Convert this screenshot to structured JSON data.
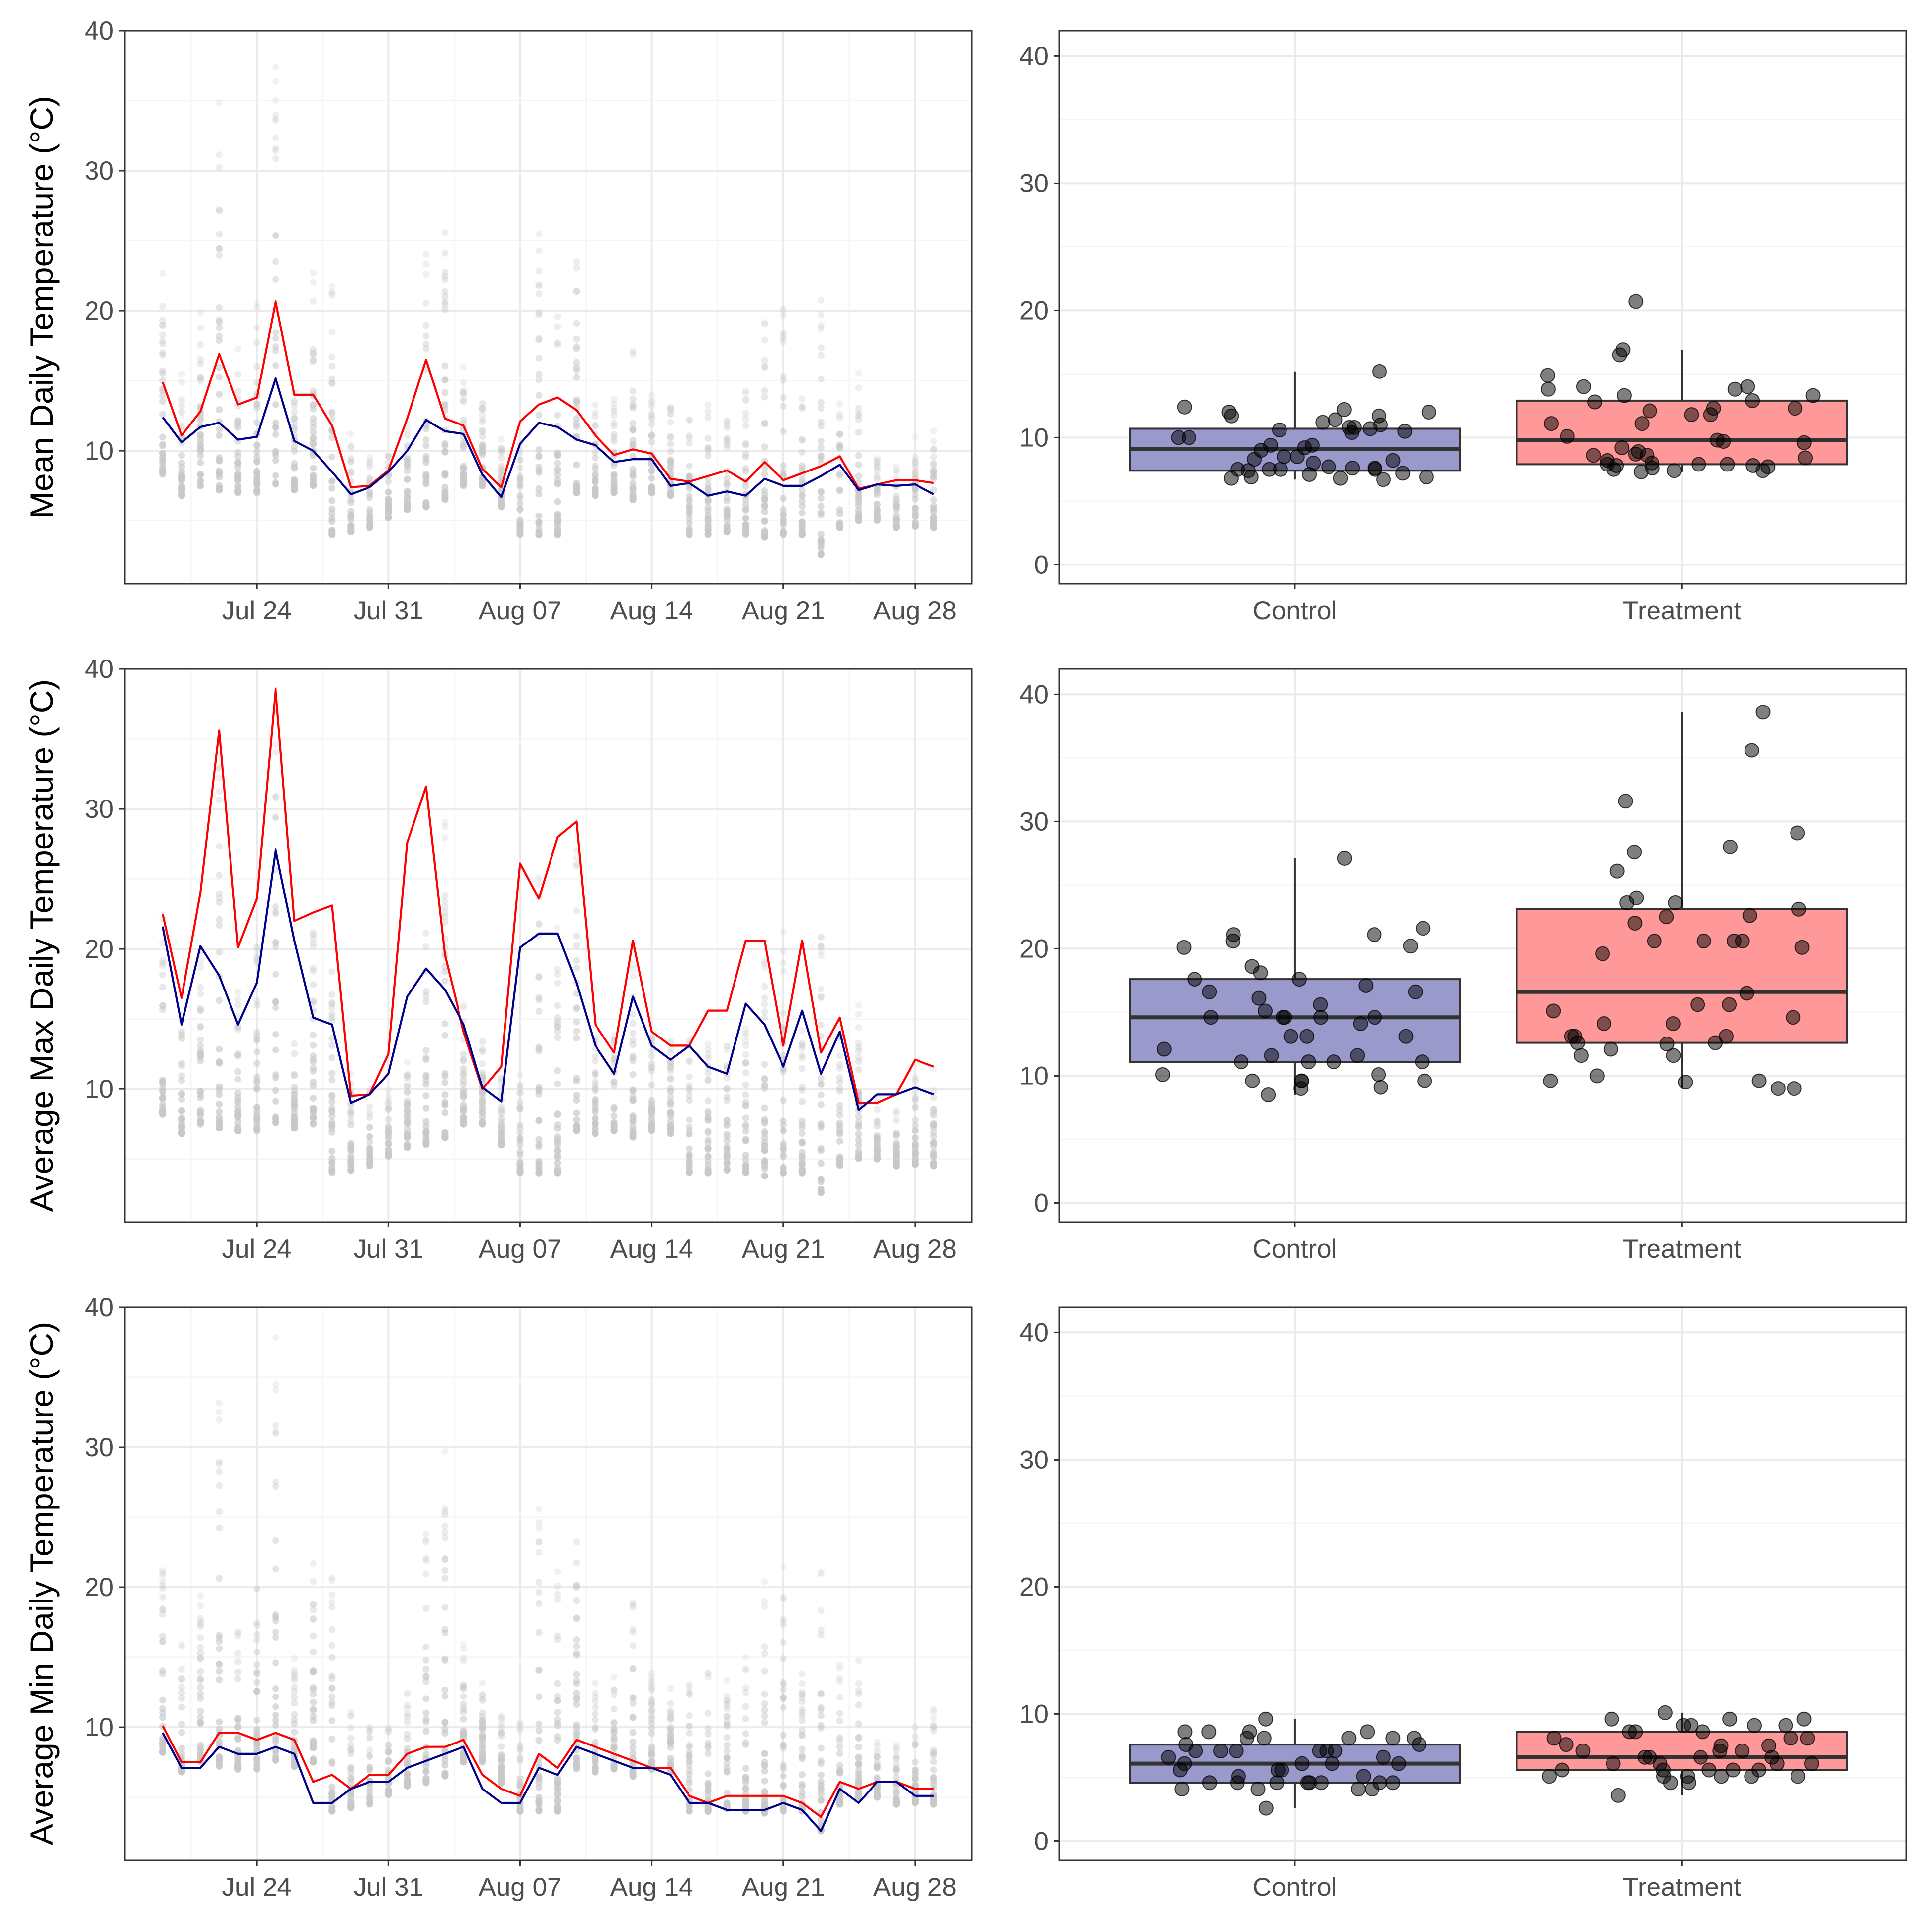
{
  "colors": {
    "treatment": "#ff0000",
    "control": "#00008b",
    "control_box_fill": "#9999cc",
    "treatment_box_fill": "#ff9999",
    "sensor_points": "#c8c8c8",
    "jitter_points": "#000000",
    "grid_major": "#ebebeb",
    "grid_minor": "#f5f5f5",
    "panel_border": "#333333"
  },
  "chart_data": [
    {
      "type": "line",
      "row": 0,
      "ylabel": "Mean Daily Temperature (°C)",
      "xlabel": "",
      "x_axis": "date",
      "x": [
        "Jul 19",
        "Jul 20",
        "Jul 21",
        "Jul 22",
        "Jul 23",
        "Jul 24",
        "Jul 25",
        "Jul 26",
        "Jul 27",
        "Jul 28",
        "Jul 29",
        "Jul 30",
        "Jul 31",
        "Aug 01",
        "Aug 02",
        "Aug 03",
        "Aug 04",
        "Aug 05",
        "Aug 06",
        "Aug 07",
        "Aug 08",
        "Aug 09",
        "Aug 10",
        "Aug 11",
        "Aug 12",
        "Aug 13",
        "Aug 14",
        "Aug 15",
        "Aug 16",
        "Aug 17",
        "Aug 18",
        "Aug 19",
        "Aug 20",
        "Aug 21",
        "Aug 22",
        "Aug 23",
        "Aug 24",
        "Aug 25",
        "Aug 26",
        "Aug 27",
        "Aug 28",
        "Aug 29"
      ],
      "x_ticks": [
        "Jul 24",
        "Jul 31",
        "Aug 07",
        "Aug 14",
        "Aug 21",
        "Aug 28"
      ],
      "ylim": [
        0.5,
        40
      ],
      "y_ticks": [
        10,
        20,
        30,
        40
      ],
      "grid": true,
      "background_points": "per-sensor daily values (grey), range per day",
      "point_range_low": [
        8.2,
        6.8,
        7.5,
        7.2,
        7.0,
        7.0,
        7.6,
        7.2,
        7.5,
        4.0,
        4.2,
        4.5,
        5.2,
        5.8,
        6.0,
        6.5,
        7.5,
        7.5,
        6.0,
        4.0,
        4.0,
        4.0,
        7.0,
        6.8,
        7.0,
        6.5,
        7.0,
        6.8,
        4.0,
        4.0,
        4.2,
        4.0,
        3.8,
        4.0,
        4.0,
        2.6,
        4.5,
        5.0,
        5.0,
        4.5,
        4.6,
        4.5
      ],
      "point_range_high": [
        22.8,
        16.0,
        20.0,
        35.0,
        18.0,
        21.0,
        38.0,
        15.0,
        23.0,
        22.0,
        11.5,
        10.0,
        10.0,
        12.5,
        25.0,
        30.0,
        16.0,
        13.5,
        11.0,
        11.0,
        27.0,
        22.0,
        28.0,
        14.0,
        14.0,
        19.0,
        14.0,
        13.5,
        14.0,
        14.5,
        13.5,
        15.0,
        20.5,
        21.5,
        15.0,
        22.0,
        14.5,
        16.0,
        9.5,
        9.0,
        11.0,
        11.5
      ],
      "series": [
        {
          "name": "",
          "color": "red",
          "values": [
            14.9,
            11.1,
            12.8,
            16.9,
            13.3,
            13.8,
            20.7,
            14.0,
            14.0,
            11.8,
            7.4,
            7.5,
            8.6,
            12.3,
            16.5,
            12.3,
            11.8,
            8.7,
            7.4,
            12.1,
            13.3,
            13.8,
            12.9,
            11.1,
            9.7,
            10.1,
            9.8,
            8.0,
            7.8,
            8.2,
            8.6,
            7.8,
            9.2,
            7.9,
            8.4,
            8.9,
            9.6,
            7.3,
            7.6,
            7.9,
            7.9,
            7.7
          ]
        },
        {
          "name": "",
          "color": "navy",
          "values": [
            12.4,
            10.6,
            11.7,
            12.0,
            10.8,
            11.0,
            15.2,
            10.7,
            10.0,
            8.5,
            6.9,
            7.4,
            8.5,
            10.0,
            12.2,
            11.4,
            11.2,
            8.3,
            6.7,
            10.5,
            12.0,
            11.7,
            10.8,
            10.4,
            9.2,
            9.4,
            9.4,
            7.5,
            7.7,
            6.8,
            7.1,
            6.8,
            8.0,
            7.5,
            7.5,
            8.2,
            9.0,
            7.2,
            7.6,
            7.5,
            7.6,
            6.9
          ]
        }
      ]
    },
    {
      "type": "box",
      "row": 0,
      "categories": [
        "Control",
        "Treatment"
      ],
      "ylim": [
        -1.5,
        42
      ],
      "y_ticks": [
        0,
        10,
        20,
        30,
        40
      ],
      "grid": true,
      "boxes": [
        {
          "category": "Control",
          "q1": 7.4,
          "median": 9.1,
          "q3": 10.7,
          "whisker_low": 6.7,
          "whisker_high": 15.2
        },
        {
          "category": "Treatment",
          "q1": 7.9,
          "median": 9.8,
          "q3": 12.9,
          "whisker_low": 7.3,
          "whisker_high": 16.9
        }
      ],
      "points": {
        "Control": [
          12.4,
          10.6,
          11.7,
          12.0,
          10.8,
          11.0,
          15.2,
          10.7,
          10.0,
          8.5,
          6.9,
          7.4,
          8.5,
          10.0,
          12.2,
          11.4,
          11.2,
          8.3,
          6.7,
          10.5,
          12.0,
          11.7,
          10.8,
          10.4,
          9.2,
          9.4,
          9.4,
          7.5,
          7.7,
          6.8,
          7.1,
          6.8,
          8.0,
          7.5,
          7.5,
          8.2,
          9.0,
          7.2,
          7.6,
          7.5,
          7.6,
          6.9
        ],
        "Treatment": [
          14.9,
          11.1,
          12.8,
          16.9,
          13.3,
          13.8,
          20.7,
          14.0,
          14.0,
          11.8,
          7.4,
          7.5,
          8.6,
          12.3,
          16.5,
          12.3,
          11.8,
          8.7,
          7.4,
          12.1,
          13.3,
          13.8,
          12.9,
          11.1,
          9.7,
          10.1,
          9.8,
          8.0,
          7.8,
          8.2,
          8.6,
          7.8,
          9.2,
          7.9,
          8.4,
          8.9,
          9.6,
          7.3,
          7.6,
          7.9,
          7.9,
          7.7
        ]
      }
    },
    {
      "type": "line",
      "row": 1,
      "ylabel": "Average Max Daily Temperature (°C)",
      "xlabel": "",
      "x_axis": "date",
      "x": [
        "Jul 19",
        "Jul 20",
        "Jul 21",
        "Jul 22",
        "Jul 23",
        "Jul 24",
        "Jul 25",
        "Jul 26",
        "Jul 27",
        "Jul 28",
        "Jul 29",
        "Jul 30",
        "Jul 31",
        "Aug 01",
        "Aug 02",
        "Aug 03",
        "Aug 04",
        "Aug 05",
        "Aug 06",
        "Aug 07",
        "Aug 08",
        "Aug 09",
        "Aug 10",
        "Aug 11",
        "Aug 12",
        "Aug 13",
        "Aug 14",
        "Aug 15",
        "Aug 16",
        "Aug 17",
        "Aug 18",
        "Aug 19",
        "Aug 20",
        "Aug 21",
        "Aug 22",
        "Aug 23",
        "Aug 24",
        "Aug 25",
        "Aug 26",
        "Aug 27",
        "Aug 28",
        "Aug 29"
      ],
      "x_ticks": [
        "Jul 24",
        "Jul 31",
        "Aug 07",
        "Aug 14",
        "Aug 21",
        "Aug 28"
      ],
      "ylim": [
        0.5,
        40
      ],
      "y_ticks": [
        10,
        20,
        30,
        40
      ],
      "grid": true,
      "background_points": "per-sensor daily values (grey), range per day",
      "point_range_low": [
        8.2,
        6.8,
        7.5,
        7.2,
        7.0,
        7.0,
        7.6,
        7.2,
        7.5,
        4.0,
        4.2,
        4.5,
        5.2,
        5.8,
        6.0,
        6.5,
        7.5,
        7.5,
        6.0,
        4.0,
        4.0,
        4.0,
        7.0,
        6.8,
        7.0,
        6.5,
        7.0,
        6.8,
        4.0,
        4.0,
        4.2,
        4.0,
        3.8,
        4.0,
        4.0,
        2.6,
        4.5,
        5.0,
        5.0,
        4.5,
        4.6,
        4.5
      ],
      "point_range_high": [
        22.8,
        16.0,
        20.0,
        35.0,
        18.0,
        21.0,
        38.0,
        15.0,
        23.0,
        22.0,
        11.5,
        10.0,
        10.0,
        12.5,
        25.0,
        30.0,
        16.0,
        13.5,
        11.0,
        11.0,
        27.0,
        22.0,
        28.0,
        14.0,
        14.0,
        19.0,
        14.0,
        13.5,
        14.0,
        14.5,
        13.5,
        15.0,
        20.5,
        21.5,
        15.0,
        22.0,
        14.5,
        16.0,
        9.5,
        9.0,
        11.0,
        11.5
      ],
      "series": [
        {
          "name": "",
          "color": "red",
          "values": [
            22.5,
            16.5,
            24.0,
            35.6,
            20.1,
            23.6,
            38.6,
            22.0,
            22.6,
            23.1,
            9.5,
            9.6,
            12.5,
            27.6,
            31.6,
            19.6,
            14.1,
            10.0,
            11.6,
            26.1,
            23.6,
            28.0,
            29.1,
            14.6,
            12.6,
            20.6,
            14.1,
            13.1,
            13.1,
            15.6,
            15.6,
            20.6,
            20.6,
            13.1,
            20.6,
            12.6,
            15.1,
            9.0,
            9.0,
            9.6,
            12.1,
            11.6
          ]
        },
        {
          "name": "",
          "color": "navy",
          "values": [
            21.6,
            14.6,
            20.2,
            18.1,
            14.6,
            17.6,
            27.1,
            20.6,
            15.1,
            14.6,
            9.0,
            9.6,
            11.1,
            16.6,
            18.6,
            17.1,
            14.6,
            10.1,
            9.1,
            20.1,
            21.1,
            21.1,
            17.6,
            13.1,
            11.1,
            16.6,
            13.1,
            12.1,
            13.1,
            11.6,
            11.1,
            16.1,
            14.6,
            11.6,
            15.6,
            11.1,
            14.1,
            8.5,
            9.6,
            9.6,
            10.1,
            9.6
          ]
        }
      ]
    },
    {
      "type": "box",
      "row": 1,
      "categories": [
        "Control",
        "Treatment"
      ],
      "ylim": [
        -1.5,
        42
      ],
      "y_ticks": [
        0,
        10,
        20,
        30,
        40
      ],
      "grid": true,
      "boxes": [
        {
          "category": "Control",
          "q1": 11.1,
          "median": 14.6,
          "q3": 17.6,
          "whisker_low": 8.5,
          "whisker_high": 27.1
        },
        {
          "category": "Treatment",
          "q1": 12.6,
          "median": 16.6,
          "q3": 23.1,
          "whisker_low": 9.0,
          "whisker_high": 38.6
        }
      ],
      "points": {
        "Control": [
          21.6,
          14.6,
          20.2,
          18.1,
          14.6,
          17.6,
          27.1,
          20.6,
          15.1,
          14.6,
          9.0,
          9.6,
          11.1,
          16.6,
          18.6,
          17.1,
          14.6,
          10.1,
          9.1,
          20.1,
          21.1,
          21.1,
          17.6,
          13.1,
          11.1,
          16.6,
          13.1,
          12.1,
          13.1,
          11.6,
          11.1,
          16.1,
          14.6,
          11.6,
          15.6,
          11.1,
          14.1,
          8.5,
          9.6,
          9.6,
          10.1,
          9.6
        ],
        "Treatment": [
          22.5,
          16.5,
          24.0,
          35.6,
          20.1,
          23.6,
          38.6,
          22.0,
          22.6,
          23.1,
          9.5,
          9.6,
          12.5,
          27.6,
          31.6,
          19.6,
          14.1,
          10.0,
          11.6,
          26.1,
          23.6,
          28.0,
          29.1,
          14.6,
          12.6,
          20.6,
          14.1,
          13.1,
          13.1,
          15.6,
          15.6,
          20.6,
          20.6,
          13.1,
          20.6,
          12.6,
          15.1,
          9.0,
          9.0,
          9.6,
          12.1,
          11.6
        ]
      }
    },
    {
      "type": "line",
      "row": 2,
      "ylabel": "Average Min Daily Temperature (°C)",
      "xlabel": "",
      "x_axis": "date",
      "x": [
        "Jul 19",
        "Jul 20",
        "Jul 21",
        "Jul 22",
        "Jul 23",
        "Jul 24",
        "Jul 25",
        "Jul 26",
        "Jul 27",
        "Jul 28",
        "Jul 29",
        "Jul 30",
        "Jul 31",
        "Aug 01",
        "Aug 02",
        "Aug 03",
        "Aug 04",
        "Aug 05",
        "Aug 06",
        "Aug 07",
        "Aug 08",
        "Aug 09",
        "Aug 10",
        "Aug 11",
        "Aug 12",
        "Aug 13",
        "Aug 14",
        "Aug 15",
        "Aug 16",
        "Aug 17",
        "Aug 18",
        "Aug 19",
        "Aug 20",
        "Aug 21",
        "Aug 22",
        "Aug 23",
        "Aug 24",
        "Aug 25",
        "Aug 26",
        "Aug 27",
        "Aug 28",
        "Aug 29"
      ],
      "x_ticks": [
        "Jul 24",
        "Jul 31",
        "Aug 07",
        "Aug 14",
        "Aug 21",
        "Aug 28"
      ],
      "ylim": [
        0.5,
        40
      ],
      "y_ticks": [
        10,
        20,
        30,
        40
      ],
      "grid": true,
      "background_points": "per-sensor daily values (grey), range per day",
      "point_range_low": [
        8.2,
        6.8,
        7.5,
        7.2,
        7.0,
        7.0,
        7.6,
        7.2,
        7.5,
        4.0,
        4.2,
        4.5,
        5.2,
        5.8,
        6.0,
        6.5,
        7.5,
        7.5,
        6.0,
        4.0,
        4.0,
        4.0,
        7.0,
        6.8,
        7.0,
        6.5,
        7.0,
        6.8,
        4.0,
        4.0,
        4.2,
        4.0,
        3.8,
        4.0,
        4.0,
        2.6,
        4.5,
        5.0,
        5.0,
        4.5,
        4.6,
        4.5
      ],
      "point_range_high": [
        22.8,
        16.0,
        20.0,
        35.0,
        18.0,
        21.0,
        38.0,
        15.0,
        23.0,
        22.0,
        11.5,
        10.0,
        10.0,
        12.5,
        25.0,
        30.0,
        16.0,
        13.5,
        11.0,
        11.0,
        27.0,
        22.0,
        28.0,
        14.0,
        14.0,
        19.0,
        14.0,
        13.5,
        14.0,
        14.5,
        13.5,
        15.0,
        20.5,
        21.5,
        15.0,
        22.0,
        14.5,
        16.0,
        9.5,
        9.0,
        11.0,
        11.5
      ],
      "series": [
        {
          "name": "",
          "color": "red",
          "values": [
            10.1,
            7.5,
            7.5,
            9.6,
            9.6,
            9.1,
            9.6,
            9.1,
            6.1,
            6.6,
            5.6,
            6.6,
            6.6,
            8.1,
            8.6,
            8.6,
            9.1,
            6.6,
            5.6,
            5.1,
            8.1,
            7.1,
            9.1,
            8.6,
            8.1,
            7.6,
            7.1,
            7.1,
            5.1,
            4.6,
            5.1,
            5.1,
            5.1,
            5.1,
            4.6,
            3.6,
            6.1,
            5.6,
            6.1,
            6.1,
            5.6,
            5.6
          ]
        },
        {
          "name": "",
          "color": "navy",
          "values": [
            9.6,
            7.1,
            7.1,
            8.6,
            8.1,
            8.1,
            8.6,
            8.1,
            4.6,
            4.6,
            5.6,
            6.1,
            6.1,
            7.1,
            7.6,
            8.1,
            8.6,
            5.6,
            4.6,
            4.6,
            7.1,
            6.6,
            8.6,
            8.1,
            7.6,
            7.1,
            7.1,
            6.6,
            4.6,
            4.6,
            4.1,
            4.1,
            4.1,
            4.6,
            4.1,
            2.6,
            5.6,
            4.6,
            6.1,
            6.1,
            5.1,
            5.1
          ]
        }
      ]
    },
    {
      "type": "box",
      "row": 2,
      "categories": [
        "Control",
        "Treatment"
      ],
      "ylim": [
        -1.5,
        42
      ],
      "y_ticks": [
        0,
        10,
        20,
        30,
        40
      ],
      "grid": true,
      "boxes": [
        {
          "category": "Control",
          "q1": 4.6,
          "median": 6.1,
          "q3": 7.6,
          "whisker_low": 2.6,
          "whisker_high": 9.6
        },
        {
          "category": "Treatment",
          "q1": 5.6,
          "median": 6.6,
          "q3": 8.6,
          "whisker_low": 3.6,
          "whisker_high": 10.1
        }
      ],
      "points": {
        "Control": [
          9.6,
          7.1,
          7.1,
          8.6,
          8.1,
          8.1,
          8.6,
          8.1,
          4.6,
          4.6,
          5.6,
          6.1,
          6.1,
          7.1,
          7.6,
          8.1,
          8.6,
          5.6,
          4.6,
          4.6,
          7.1,
          6.6,
          8.6,
          8.1,
          7.6,
          7.1,
          7.1,
          6.6,
          4.6,
          4.6,
          4.1,
          4.1,
          4.1,
          4.6,
          4.1,
          2.6,
          5.6,
          4.6,
          6.1,
          6.1,
          5.1,
          5.1
        ],
        "Treatment": [
          10.1,
          7.5,
          7.5,
          9.6,
          9.6,
          9.1,
          9.6,
          9.1,
          6.1,
          6.6,
          5.6,
          6.6,
          6.6,
          8.1,
          8.6,
          8.6,
          9.1,
          6.6,
          5.6,
          5.1,
          8.1,
          7.1,
          9.1,
          8.6,
          8.1,
          7.6,
          7.1,
          7.1,
          5.1,
          4.6,
          5.1,
          5.1,
          5.1,
          5.1,
          4.6,
          3.6,
          6.1,
          5.6,
          6.1,
          6.1,
          5.6,
          5.6
        ]
      }
    }
  ]
}
